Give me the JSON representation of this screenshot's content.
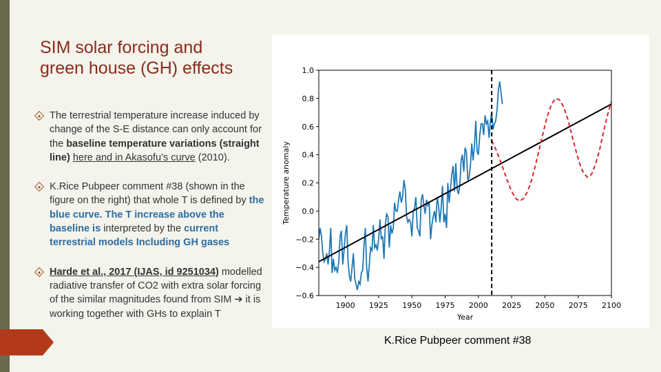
{
  "slide": {
    "title": "SIM solar forcing and green house (GH) effects",
    "bullets": [
      {
        "parts": [
          {
            "t": "The terrestrial temperature increase induced by change of the S-E distance can  only account for the ",
            "s": ""
          },
          {
            "t": "baseline temperature variations (straight line)",
            "s": "bold"
          },
          {
            "t": " ",
            "s": ""
          },
          {
            "t": "here and  in Akasofu’s curve",
            "s": "ul"
          },
          {
            "t": " (2010).",
            "s": ""
          }
        ]
      },
      {
        "parts": [
          {
            "t": "K.Rice Pubpeer comment #38 (shown in the figure on the right) that whole T is defined by ",
            "s": ""
          },
          {
            "t": "the blue curve. The T increase above the baseline is",
            "s": "bold blue"
          },
          {
            "t": " interpreted by the ",
            "s": ""
          },
          {
            "t": "current terrestrial models Including GH gases",
            "s": "bold blue"
          }
        ]
      },
      {
        "parts": [
          {
            "t": "Harde et al., 2017 (IJAS, id 9251034)",
            "s": "bold ul"
          },
          {
            "t": " modelled radiative transfer of CO2 with extra solar forcing  of the similar magnitudes found from SIM ➔  it  is working together with GHs to explain T",
            "s": ""
          }
        ]
      }
    ],
    "caption": "K.Rice Pubpeer comment #38"
  },
  "colors": {
    "background": "#f4f3ec",
    "left_bar": "#6b6a4f",
    "title": "#8a2b1a",
    "accent_shape": "#b23a1a",
    "blue_text": "#2c6da1"
  },
  "chart_data": {
    "type": "line",
    "xlabel": "Year",
    "ylabel": "Temperature anomaly",
    "xlim": [
      1880,
      2100
    ],
    "ylim": [
      -0.6,
      1.0
    ],
    "xticks": [
      1900,
      1925,
      1950,
      1975,
      2000,
      2025,
      2050,
      2075,
      2100
    ],
    "xtick_labels": [
      "1900",
      "1925",
      "1950",
      "1975",
      "2000",
      "2025",
      "2050",
      "2075",
      "2100"
    ],
    "yticks": [
      -0.6,
      -0.4,
      -0.2,
      0.0,
      0.2,
      0.4,
      0.6,
      0.8,
      1.0
    ],
    "ytick_labels": [
      "−0.6",
      "−0.4",
      "−0.2",
      "0.0",
      "0.2",
      "0.4",
      "0.6",
      "0.8",
      "1.0"
    ],
    "vline_x": 2010,
    "series": [
      {
        "color": "#1f77b4",
        "style": "solid",
        "x": [
          1880,
          1881,
          1882,
          1883,
          1884,
          1885,
          1886,
          1887,
          1888,
          1889,
          1890,
          1891,
          1892,
          1893,
          1894,
          1895,
          1896,
          1897,
          1898,
          1899,
          1900,
          1901,
          1902,
          1903,
          1904,
          1905,
          1906,
          1907,
          1908,
          1909,
          1910,
          1911,
          1912,
          1913,
          1914,
          1915,
          1916,
          1917,
          1918,
          1919,
          1920,
          1921,
          1922,
          1923,
          1924,
          1925,
          1926,
          1927,
          1928,
          1929,
          1930,
          1931,
          1932,
          1933,
          1934,
          1935,
          1936,
          1937,
          1938,
          1939,
          1940,
          1941,
          1942,
          1943,
          1944,
          1945,
          1946,
          1947,
          1948,
          1949,
          1950,
          1951,
          1952,
          1953,
          1954,
          1955,
          1956,
          1957,
          1958,
          1959,
          1960,
          1961,
          1962,
          1963,
          1964,
          1965,
          1966,
          1967,
          1968,
          1969,
          1970,
          1971,
          1972,
          1973,
          1974,
          1975,
          1976,
          1977,
          1978,
          1979,
          1980,
          1981,
          1982,
          1983,
          1984,
          1985,
          1986,
          1987,
          1988,
          1989,
          1990,
          1991,
          1992,
          1993,
          1994,
          1995,
          1996,
          1997,
          1998,
          1999,
          2000,
          2001,
          2002,
          2003,
          2004,
          2005,
          2006,
          2007,
          2008,
          2009,
          2010,
          2011,
          2012,
          2013,
          2014,
          2015,
          2016,
          2017,
          2018
        ],
        "y": [
          -0.2,
          -0.12,
          -0.18,
          -0.3,
          -0.36,
          -0.34,
          -0.3,
          -0.38,
          -0.28,
          -0.12,
          -0.44,
          -0.34,
          -0.42,
          -0.4,
          -0.44,
          -0.36,
          -0.18,
          -0.14,
          -0.38,
          -0.28,
          -0.16,
          -0.1,
          -0.36,
          -0.46,
          -0.5,
          -0.4,
          -0.3,
          -0.48,
          -0.52,
          -0.56,
          -0.5,
          -0.52,
          -0.44,
          -0.42,
          -0.24,
          -0.12,
          -0.4,
          -0.5,
          -0.38,
          -0.26,
          -0.28,
          -0.1,
          -0.26,
          -0.24,
          -0.28,
          -0.2,
          -0.06,
          -0.2,
          -0.18,
          -0.34,
          -0.1,
          -0.02,
          -0.04,
          -0.26,
          -0.1,
          -0.16,
          -0.12,
          0.06,
          0.0,
          0.0,
          0.08,
          0.14,
          0.06,
          0.1,
          0.22,
          0.16,
          -0.04,
          -0.08,
          -0.06,
          -0.08,
          -0.18,
          0.0,
          0.02,
          0.1,
          -0.12,
          -0.14,
          -0.18,
          0.08,
          0.12,
          0.04,
          -0.02,
          0.08,
          0.04,
          0.06,
          -0.2,
          -0.1,
          -0.04,
          0.0,
          -0.08,
          0.1,
          0.04,
          -0.08,
          0.02,
          0.18,
          -0.08,
          -0.02,
          -0.12,
          0.2,
          0.06,
          0.16,
          0.26,
          0.32,
          0.14,
          0.34,
          0.16,
          0.12,
          0.18,
          0.36,
          0.4,
          0.28,
          0.45,
          0.42,
          0.22,
          0.24,
          0.32,
          0.48,
          0.36,
          0.46,
          0.64,
          0.42,
          0.4,
          0.54,
          0.62,
          0.62,
          0.54,
          0.68,
          0.62,
          0.64,
          0.52,
          0.64,
          0.7,
          0.58,
          0.62,
          0.64,
          0.72,
          0.86,
          0.92,
          0.84,
          0.76
        ]
      },
      {
        "color": "#000000",
        "style": "solid",
        "x": [
          1880,
          2100
        ],
        "y": [
          -0.36,
          0.76
        ]
      },
      {
        "color": "#d62728",
        "style": "dashed",
        "x": [
          2010,
          2013,
          2016,
          2019,
          2022,
          2025,
          2028,
          2031,
          2034,
          2037,
          2040,
          2043,
          2046,
          2049,
          2052,
          2055,
          2058,
          2061,
          2064,
          2067,
          2070,
          2073,
          2076,
          2079,
          2082,
          2085,
          2088,
          2091,
          2094,
          2097,
          2100
        ],
        "y": [
          0.5,
          0.44,
          0.37,
          0.29,
          0.21,
          0.14,
          0.09,
          0.07,
          0.09,
          0.14,
          0.22,
          0.33,
          0.45,
          0.57,
          0.68,
          0.76,
          0.8,
          0.79,
          0.74,
          0.66,
          0.55,
          0.44,
          0.34,
          0.27,
          0.24,
          0.26,
          0.33,
          0.43,
          0.56,
          0.68,
          0.78
        ]
      }
    ]
  }
}
